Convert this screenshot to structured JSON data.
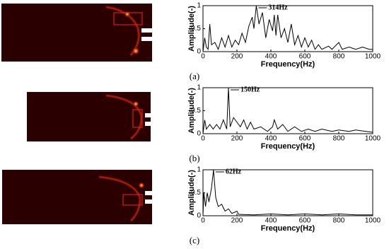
{
  "chart_data": [
    {
      "type": "line",
      "label": "(a)",
      "annotation": "314Hz",
      "xlabel": "Frequency(Hz)",
      "ylabel": "Amplitude(-)",
      "xlim": [
        0,
        1000
      ],
      "ylim": [
        0,
        1
      ],
      "xticks": [
        0,
        200,
        400,
        600,
        800,
        1000
      ],
      "yticks": [
        0,
        0.5,
        1
      ],
      "color": "#000000",
      "x": [
        0,
        10,
        20,
        30,
        40,
        50,
        70,
        90,
        110,
        130,
        150,
        170,
        190,
        210,
        230,
        250,
        270,
        290,
        300,
        314,
        330,
        350,
        370,
        390,
        410,
        420,
        430,
        440,
        460,
        480,
        500,
        520,
        540,
        560,
        580,
        600,
        620,
        640,
        660,
        680,
        700,
        740,
        760,
        800,
        820,
        860,
        900,
        940,
        980,
        1000
      ],
      "values": [
        0,
        0.3,
        0.1,
        0.05,
        0.6,
        0.15,
        0.2,
        0.05,
        0.3,
        0.1,
        0.35,
        0.1,
        0.25,
        0.15,
        0.4,
        0.2,
        0.55,
        0.75,
        0.5,
        1,
        0.6,
        0.85,
        0.3,
        0.7,
        0.45,
        0.8,
        0.35,
        0.8,
        0.3,
        0.5,
        0.2,
        0.6,
        0.15,
        0.35,
        0.1,
        0.3,
        0.1,
        0.25,
        0.05,
        0.15,
        0.05,
        0.12,
        0.05,
        0.2,
        0.05,
        0.1,
        0.05,
        0.1,
        0.05,
        0.05
      ]
    },
    {
      "type": "line",
      "label": "(b)",
      "annotation": "150Hz",
      "xlabel": "Frequency(Hz)",
      "ylabel": "Amplitude(-)",
      "xlim": [
        0,
        1000
      ],
      "ylim": [
        0,
        1
      ],
      "xticks": [
        0,
        200,
        400,
        600,
        800,
        1000
      ],
      "yticks": [
        0,
        0.5,
        1
      ],
      "color": "#000000",
      "x": [
        0,
        10,
        20,
        40,
        60,
        80,
        100,
        120,
        140,
        150,
        160,
        180,
        200,
        220,
        240,
        260,
        280,
        300,
        340,
        380,
        410,
        420,
        440,
        470,
        500,
        540,
        580,
        620,
        660,
        700,
        760,
        800,
        860,
        900,
        960,
        1000
      ],
      "values": [
        0,
        0.3,
        0.1,
        0.2,
        0.1,
        0.2,
        0.1,
        0.3,
        0.1,
        1,
        0.15,
        0.35,
        0.25,
        0.15,
        0.3,
        0.1,
        0.25,
        0.1,
        0.15,
        0.05,
        0.15,
        0.3,
        0.1,
        0.2,
        0.05,
        0.15,
        0.05,
        0.1,
        0.05,
        0.1,
        0.05,
        0.08,
        0.05,
        0.08,
        0.05,
        0.03
      ]
    },
    {
      "type": "line",
      "label": "(c)",
      "annotation": "62Hz",
      "xlabel": "Frequency(Hz)",
      "ylabel": "Amplitude(-)",
      "xlim": [
        0,
        1000
      ],
      "ylim": [
        0,
        1
      ],
      "xticks": [
        0,
        200,
        400,
        600,
        800,
        1000
      ],
      "yticks": [
        0,
        0.5,
        1
      ],
      "color": "#000000",
      "x": [
        0,
        5,
        15,
        25,
        35,
        50,
        62,
        75,
        90,
        110,
        130,
        150,
        170,
        200,
        210,
        300,
        400,
        500,
        600,
        700,
        800,
        900,
        1000
      ],
      "values": [
        0,
        0.5,
        0.2,
        0.5,
        0.3,
        0.6,
        1,
        0.4,
        0.2,
        0.25,
        0.1,
        0.15,
        0.05,
        0.1,
        0.03,
        0.02,
        0.04,
        0.02,
        0.04,
        0.02,
        0.04,
        0.02,
        0.02
      ]
    }
  ]
}
